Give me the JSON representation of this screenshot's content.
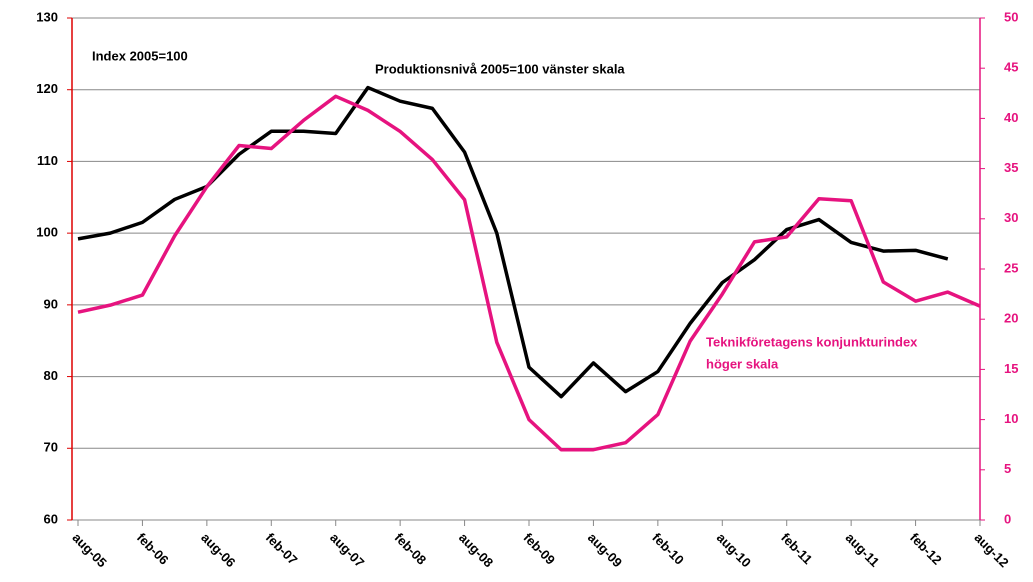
{
  "chart_data": {
    "type": "line",
    "categories": [
      "aug-05",
      null,
      "feb-06",
      null,
      "aug-06",
      null,
      "feb-07",
      null,
      "aug-07",
      null,
      "feb-08",
      null,
      "aug-08",
      null,
      "feb-09",
      null,
      "aug-09",
      null,
      "feb-10",
      null,
      "aug-10",
      null,
      "feb-11",
      null,
      "aug-11",
      null,
      "feb-12",
      null,
      "aug-12"
    ],
    "series": [
      {
        "name": "Produktionsnivå 2005=100 vänster skala",
        "color": "#000000",
        "axis": "y",
        "values": [
          99.2,
          100,
          101.5,
          104.7,
          106.5,
          111,
          114.2,
          114.2,
          113.9,
          120.3,
          118.4,
          117.4,
          111.3,
          100,
          81.3,
          77.2,
          81.9,
          77.9,
          80.7,
          87.4,
          93.1,
          96.3,
          100.5,
          101.9,
          98.7,
          97.5,
          97.6,
          96.4,
          null
        ]
      },
      {
        "name": "Teknikföretagens konjunkturindex",
        "color": "#e6137f",
        "axis": "y2",
        "values": [
          20.7,
          21.4,
          22.4,
          28.3,
          33.2,
          37.3,
          37,
          39.8,
          42.2,
          40.8,
          38.7,
          35.9,
          31.9,
          17.7,
          10,
          7,
          7,
          7.7,
          10.5,
          17.8,
          22.5,
          27.7,
          28.2,
          32,
          31.8,
          23.7,
          21.8,
          22.7,
          21.3
        ]
      }
    ],
    "annotations": [
      "Index 2005=100",
      "höger skala"
    ],
    "ylim": [
      60,
      130
    ],
    "yticks": [
      60,
      70,
      80,
      90,
      100,
      110,
      120,
      130
    ],
    "y2lim": [
      0,
      50
    ],
    "y2ticks": [
      0,
      5,
      10,
      15,
      20,
      25,
      30,
      35,
      40,
      45,
      50
    ],
    "grid": true
  }
}
